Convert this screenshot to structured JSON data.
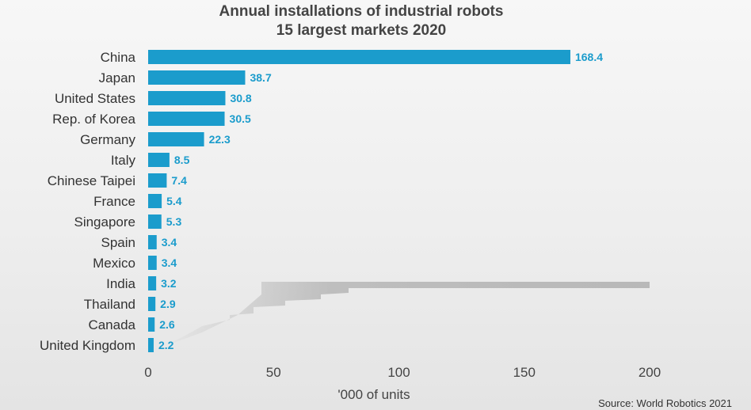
{
  "chart_data": {
    "type": "bar",
    "orientation": "horizontal",
    "title": "Annual installations of industrial robots",
    "subtitle": "15 largest markets 2020",
    "categories": [
      "China",
      "Japan",
      "United States",
      "Rep. of Korea",
      "Germany",
      "Italy",
      "Chinese Taipei",
      "France",
      "Singapore",
      "Spain",
      "Mexico",
      "India",
      "Thailand",
      "Canada",
      "United Kingdom"
    ],
    "values": [
      168.4,
      38.7,
      30.8,
      30.5,
      22.3,
      8.5,
      7.4,
      5.4,
      5.3,
      3.4,
      3.4,
      3.2,
      2.9,
      2.6,
      2.2
    ],
    "value_labels": [
      "168.4",
      "38.7",
      "30.8",
      "30.5",
      "22.3",
      "8.5",
      "7.4",
      "5.4",
      "5.3",
      "3.4",
      "3.4",
      "3.2",
      "2.9",
      "2.6",
      "2.2"
    ],
    "xlabel": "'000 of units",
    "ylabel": "",
    "xlim": [
      0,
      200
    ],
    "xticks": [
      0,
      50,
      100,
      150,
      200
    ],
    "xtick_labels": [
      "0",
      "50",
      "100",
      "150",
      "200"
    ],
    "grid": false,
    "bar_color": "#1b9ccc",
    "label_color": "#1b9ccc"
  },
  "source": "Source: World Robotics 2021"
}
